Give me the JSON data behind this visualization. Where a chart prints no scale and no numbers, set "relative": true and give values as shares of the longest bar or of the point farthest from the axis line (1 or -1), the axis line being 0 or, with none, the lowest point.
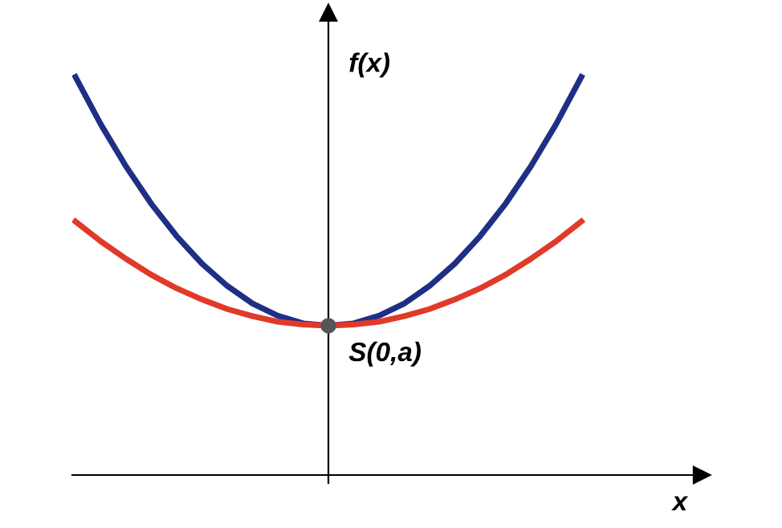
{
  "chart_data": {
    "type": "line",
    "relative": true,
    "xlabel": "x",
    "ylabel": "f(x)",
    "categories": [
      null,
      null,
      null,
      null,
      null,
      null,
      null,
      null,
      null,
      null,
      null,
      null,
      null,
      null,
      null,
      null,
      null,
      null,
      null,
      null,
      null
    ],
    "line_style": "solid",
    "series": [
      {
        "color": "#1f2f86",
        "values": [
          1.0,
          0.881,
          0.775,
          0.681,
          0.6,
          0.531,
          0.475,
          0.431,
          0.4,
          0.381,
          0.375,
          0.381,
          0.4,
          0.431,
          0.475,
          0.531,
          0.6,
          0.681,
          0.775,
          0.881,
          1.0
        ]
      },
      {
        "color": "#e03a2a",
        "values": [
          0.637,
          0.587,
          0.543,
          0.503,
          0.469,
          0.441,
          0.417,
          0.399,
          0.385,
          0.378,
          0.375,
          0.378,
          0.385,
          0.399,
          0.417,
          0.441,
          0.469,
          0.503,
          0.543,
          0.587,
          0.637
        ]
      }
    ],
    "annotations": [
      {
        "text": "S(0,a)",
        "y": 0.375
      }
    ]
  }
}
